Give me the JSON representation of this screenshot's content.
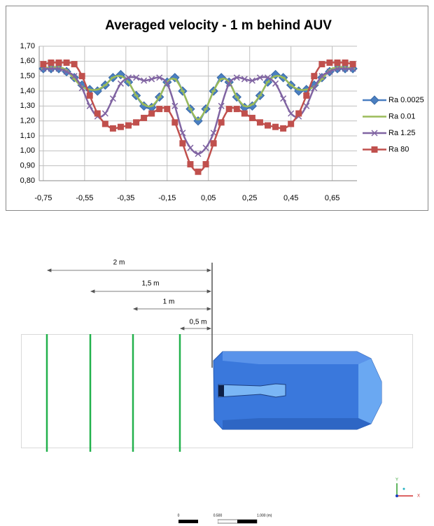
{
  "chart_data": {
    "type": "line",
    "title": "Averaged velocity - 1 m behind AUV",
    "x": [
      -0.75,
      -0.7125,
      -0.675,
      -0.6375,
      -0.6,
      -0.5625,
      -0.525,
      -0.4875,
      -0.45,
      -0.4125,
      -0.375,
      -0.3375,
      -0.3,
      -0.2625,
      -0.225,
      -0.1875,
      -0.15,
      -0.1125,
      -0.075,
      -0.0375,
      0,
      0.0375,
      0.075,
      0.1125,
      0.15,
      0.1875,
      0.225,
      0.2625,
      0.3,
      0.3375,
      0.375,
      0.4125,
      0.45,
      0.4875,
      0.525,
      0.5625,
      0.6,
      0.6375,
      0.675,
      0.7125,
      0.75
    ],
    "series": [
      {
        "name": "Ra 0.0025",
        "color": "#4a7fc1",
        "marker": "diamond",
        "values": [
          1.55,
          1.55,
          1.55,
          1.53,
          1.49,
          1.44,
          1.41,
          1.4,
          1.44,
          1.49,
          1.51,
          1.46,
          1.37,
          1.3,
          1.29,
          1.36,
          1.46,
          1.49,
          1.4,
          1.28,
          1.2,
          1.28,
          1.4,
          1.49,
          1.46,
          1.36,
          1.29,
          1.3,
          1.37,
          1.46,
          1.51,
          1.49,
          1.44,
          1.4,
          1.41,
          1.44,
          1.49,
          1.53,
          1.55,
          1.55,
          1.55
        ]
      },
      {
        "name": "Ra 0.01",
        "color": "#9bbb59",
        "marker": "dash",
        "values": [
          1.55,
          1.56,
          1.56,
          1.54,
          1.48,
          1.43,
          1.41,
          1.41,
          1.44,
          1.49,
          1.5,
          1.46,
          1.37,
          1.31,
          1.3,
          1.36,
          1.46,
          1.48,
          1.4,
          1.28,
          1.21,
          1.28,
          1.4,
          1.48,
          1.46,
          1.36,
          1.3,
          1.31,
          1.37,
          1.46,
          1.5,
          1.49,
          1.44,
          1.41,
          1.41,
          1.43,
          1.48,
          1.54,
          1.56,
          1.56,
          1.55
        ]
      },
      {
        "name": "Ra 1.25",
        "color": "#8064a2",
        "marker": "x",
        "values": [
          1.55,
          1.55,
          1.55,
          1.53,
          1.5,
          1.42,
          1.3,
          1.23,
          1.25,
          1.35,
          1.45,
          1.49,
          1.49,
          1.47,
          1.48,
          1.49,
          1.45,
          1.3,
          1.12,
          1.02,
          0.98,
          1.02,
          1.12,
          1.3,
          1.45,
          1.49,
          1.48,
          1.47,
          1.49,
          1.49,
          1.45,
          1.35,
          1.25,
          1.23,
          1.3,
          1.42,
          1.5,
          1.53,
          1.55,
          1.55,
          1.55
        ]
      },
      {
        "name": "Ra 80",
        "color": "#c0504d",
        "marker": "square",
        "values": [
          1.58,
          1.59,
          1.59,
          1.59,
          1.58,
          1.5,
          1.37,
          1.25,
          1.18,
          1.15,
          1.16,
          1.17,
          1.19,
          1.22,
          1.25,
          1.28,
          1.28,
          1.19,
          1.05,
          0.91,
          0.86,
          0.91,
          1.05,
          1.19,
          1.28,
          1.28,
          1.25,
          1.22,
          1.19,
          1.17,
          1.16,
          1.15,
          1.18,
          1.25,
          1.37,
          1.5,
          1.58,
          1.59,
          1.59,
          1.59,
          1.58
        ]
      }
    ],
    "xlim": [
      -0.77,
      0.77
    ],
    "ylim": [
      0.8,
      1.7
    ],
    "xticks": [
      {
        "value": -0.75,
        "label": "-0,75"
      },
      {
        "value": -0.55,
        "label": "-0,55"
      },
      {
        "value": -0.35,
        "label": "-0,35"
      },
      {
        "value": -0.15,
        "label": "-0,15"
      },
      {
        "value": 0.05,
        "label": "0,05"
      },
      {
        "value": 0.25,
        "label": "0,25"
      },
      {
        "value": 0.45,
        "label": "0,45"
      },
      {
        "value": 0.65,
        "label": "0,65"
      }
    ],
    "yticks": [
      {
        "value": 0.8,
        "label": "0,80"
      },
      {
        "value": 0.9,
        "label": "0,90"
      },
      {
        "value": 1.0,
        "label": "1,00"
      },
      {
        "value": 1.1,
        "label": "1,10"
      },
      {
        "value": 1.2,
        "label": "1,20"
      },
      {
        "value": 1.3,
        "label": "1,30"
      },
      {
        "value": 1.4,
        "label": "1,40"
      },
      {
        "value": 1.5,
        "label": "1,50"
      },
      {
        "value": 1.6,
        "label": "1,60"
      },
      {
        "value": 1.7,
        "label": "1,70"
      }
    ],
    "grid": true,
    "legend": "right"
  },
  "diagram": {
    "dimensions": [
      "2 m",
      "1,5 m",
      "1 m",
      "0,5 m"
    ],
    "scale_labels": [
      "0",
      "0.500",
      "1.000 (m)"
    ],
    "axis_labels": [
      "Y",
      "X"
    ]
  }
}
